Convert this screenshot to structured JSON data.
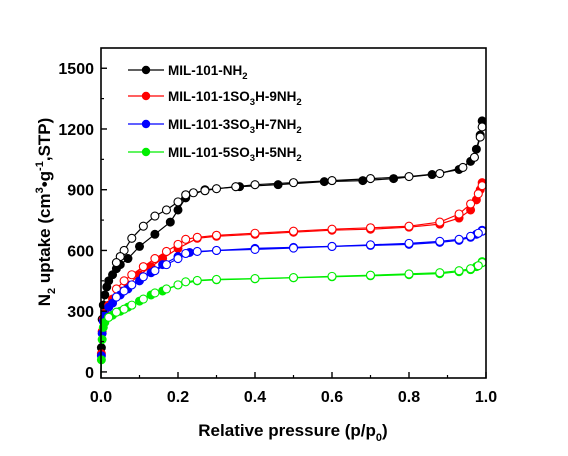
{
  "chart_data": {
    "type": "scatter",
    "xlabel": {
      "main": "Relative pressure (p/p",
      "sub": "0",
      "end": ")"
    },
    "ylabel": {
      "p1": "N",
      "s1": "2",
      "p2": " uptake (cm",
      "s2": "3",
      "p3": "•g",
      "s3": "-1",
      "p4": ",STP)"
    },
    "xlim": [
      0.0,
      1.0
    ],
    "ylim": [
      -30,
      1600
    ],
    "xticks": [
      "0.0",
      "0.2",
      "0.4",
      "0.6",
      "0.8",
      "1.0"
    ],
    "yticks": [
      "0",
      "300",
      "600",
      "900",
      "1200",
      "1500"
    ],
    "legend_position": "top-left",
    "series": [
      {
        "name": "MIL-101-NH2",
        "legend": {
          "main": "MIL-101-NH",
          "sub": "2",
          "rest": ""
        },
        "color": "#000000",
        "adsorption": [
          [
            0.0,
            0
          ],
          [
            0.001,
            120
          ],
          [
            0.003,
            260
          ],
          [
            0.006,
            330
          ],
          [
            0.01,
            380
          ],
          [
            0.015,
            420
          ],
          [
            0.02,
            450
          ],
          [
            0.03,
            480
          ],
          [
            0.04,
            510
          ],
          [
            0.05,
            530
          ],
          [
            0.07,
            560
          ],
          [
            0.1,
            620
          ],
          [
            0.14,
            680
          ],
          [
            0.18,
            740
          ],
          [
            0.2,
            800
          ],
          [
            0.22,
            860
          ],
          [
            0.27,
            900
          ],
          [
            0.36,
            915
          ],
          [
            0.46,
            925
          ],
          [
            0.58,
            940
          ],
          [
            0.68,
            945
          ],
          [
            0.76,
            955
          ],
          [
            0.86,
            975
          ],
          [
            0.93,
            1000
          ],
          [
            0.96,
            1040
          ],
          [
            0.975,
            1100
          ],
          [
            0.985,
            1170
          ],
          [
            0.99,
            1240
          ]
        ],
        "desorption": [
          [
            0.99,
            1210
          ],
          [
            0.985,
            1160
          ],
          [
            0.97,
            1060
          ],
          [
            0.94,
            1010
          ],
          [
            0.88,
            980
          ],
          [
            0.8,
            965
          ],
          [
            0.7,
            955
          ],
          [
            0.6,
            945
          ],
          [
            0.5,
            935
          ],
          [
            0.4,
            925
          ],
          [
            0.35,
            915
          ],
          [
            0.3,
            905
          ],
          [
            0.27,
            895
          ],
          [
            0.24,
            885
          ],
          [
            0.22,
            875
          ],
          [
            0.2,
            840
          ],
          [
            0.17,
            800
          ],
          [
            0.14,
            770
          ],
          [
            0.11,
            720
          ],
          [
            0.08,
            660
          ],
          [
            0.06,
            600
          ],
          [
            0.05,
            570
          ],
          [
            0.04,
            540
          ]
        ]
      },
      {
        "name": "MIL-101-1SO3H-9NH2",
        "legend": {
          "main": "MIL-101-1SO",
          "sub": "3",
          "rest": "H-9NH",
          "sub2": "2"
        },
        "color": "#ff0000",
        "adsorption": [
          [
            0.0,
            0
          ],
          [
            0.001,
            90
          ],
          [
            0.003,
            200
          ],
          [
            0.006,
            260
          ],
          [
            0.01,
            290
          ],
          [
            0.02,
            330
          ],
          [
            0.03,
            360
          ],
          [
            0.05,
            400
          ],
          [
            0.07,
            430
          ],
          [
            0.1,
            480
          ],
          [
            0.13,
            520
          ],
          [
            0.16,
            560
          ],
          [
            0.2,
            610
          ],
          [
            0.25,
            660
          ],
          [
            0.3,
            670
          ],
          [
            0.4,
            680
          ],
          [
            0.5,
            690
          ],
          [
            0.6,
            700
          ],
          [
            0.7,
            705
          ],
          [
            0.8,
            715
          ],
          [
            0.88,
            730
          ],
          [
            0.93,
            760
          ],
          [
            0.96,
            800
          ],
          [
            0.975,
            850
          ],
          [
            0.985,
            900
          ],
          [
            0.99,
            935
          ]
        ],
        "desorption": [
          [
            0.99,
            920
          ],
          [
            0.98,
            880
          ],
          [
            0.96,
            830
          ],
          [
            0.93,
            780
          ],
          [
            0.88,
            740
          ],
          [
            0.8,
            720
          ],
          [
            0.7,
            712
          ],
          [
            0.6,
            705
          ],
          [
            0.5,
            695
          ],
          [
            0.4,
            685
          ],
          [
            0.3,
            675
          ],
          [
            0.25,
            665
          ],
          [
            0.22,
            655
          ],
          [
            0.2,
            630
          ],
          [
            0.17,
            595
          ],
          [
            0.14,
            560
          ],
          [
            0.11,
            520
          ],
          [
            0.08,
            480
          ],
          [
            0.06,
            450
          ],
          [
            0.04,
            410
          ]
        ]
      },
      {
        "name": "MIL-101-3SO3H-7NH2",
        "legend": {
          "main": "MIL-101-3SO",
          "sub": "3",
          "rest": "H-7NH",
          "sub2": "2"
        },
        "color": "#0000ff",
        "adsorption": [
          [
            0.0,
            0
          ],
          [
            0.001,
            80
          ],
          [
            0.003,
            190
          ],
          [
            0.006,
            250
          ],
          [
            0.01,
            280
          ],
          [
            0.02,
            320
          ],
          [
            0.03,
            340
          ],
          [
            0.05,
            380
          ],
          [
            0.07,
            410
          ],
          [
            0.1,
            450
          ],
          [
            0.13,
            490
          ],
          [
            0.16,
            530
          ],
          [
            0.2,
            570
          ],
          [
            0.23,
            590
          ],
          [
            0.3,
            600
          ],
          [
            0.4,
            610
          ],
          [
            0.5,
            615
          ],
          [
            0.6,
            620
          ],
          [
            0.7,
            625
          ],
          [
            0.8,
            630
          ],
          [
            0.88,
            640
          ],
          [
            0.93,
            650
          ],
          [
            0.96,
            665
          ],
          [
            0.975,
            680
          ],
          [
            0.99,
            700
          ]
        ],
        "desorption": [
          [
            0.99,
            695
          ],
          [
            0.98,
            685
          ],
          [
            0.96,
            670
          ],
          [
            0.93,
            655
          ],
          [
            0.88,
            645
          ],
          [
            0.8,
            635
          ],
          [
            0.7,
            628
          ],
          [
            0.6,
            620
          ],
          [
            0.5,
            612
          ],
          [
            0.4,
            605
          ],
          [
            0.3,
            600
          ],
          [
            0.25,
            595
          ],
          [
            0.22,
            585
          ],
          [
            0.2,
            560
          ],
          [
            0.17,
            530
          ],
          [
            0.14,
            500
          ],
          [
            0.11,
            470
          ],
          [
            0.08,
            430
          ],
          [
            0.06,
            400
          ],
          [
            0.04,
            370
          ]
        ]
      },
      {
        "name": "MIL-101-5SO3H-5NH2",
        "legend": {
          "main": "MIL-101-5SO",
          "sub": "3",
          "rest": "H-5NH",
          "sub2": "2"
        },
        "color": "#00ee00",
        "adsorption": [
          [
            0.0,
            0
          ],
          [
            0.001,
            60
          ],
          [
            0.003,
            160
          ],
          [
            0.006,
            220
          ],
          [
            0.01,
            245
          ],
          [
            0.02,
            270
          ],
          [
            0.03,
            280
          ],
          [
            0.05,
            300
          ],
          [
            0.07,
            320
          ],
          [
            0.1,
            350
          ],
          [
            0.13,
            380
          ],
          [
            0.16,
            400
          ],
          [
            0.2,
            430
          ],
          [
            0.25,
            450
          ],
          [
            0.3,
            455
          ],
          [
            0.4,
            460
          ],
          [
            0.5,
            465
          ],
          [
            0.6,
            470
          ],
          [
            0.7,
            475
          ],
          [
            0.8,
            480
          ],
          [
            0.88,
            485
          ],
          [
            0.93,
            495
          ],
          [
            0.96,
            505
          ],
          [
            0.975,
            520
          ],
          [
            0.99,
            545
          ]
        ],
        "desorption": [
          [
            0.99,
            540
          ],
          [
            0.98,
            525
          ],
          [
            0.96,
            510
          ],
          [
            0.93,
            500
          ],
          [
            0.88,
            490
          ],
          [
            0.8,
            484
          ],
          [
            0.7,
            478
          ],
          [
            0.6,
            472
          ],
          [
            0.5,
            466
          ],
          [
            0.4,
            461
          ],
          [
            0.3,
            457
          ],
          [
            0.25,
            452
          ],
          [
            0.22,
            445
          ],
          [
            0.2,
            430
          ],
          [
            0.17,
            410
          ],
          [
            0.14,
            390
          ],
          [
            0.11,
            360
          ],
          [
            0.08,
            330
          ],
          [
            0.06,
            310
          ],
          [
            0.04,
            295
          ],
          [
            0.02,
            270
          ]
        ]
      }
    ]
  }
}
